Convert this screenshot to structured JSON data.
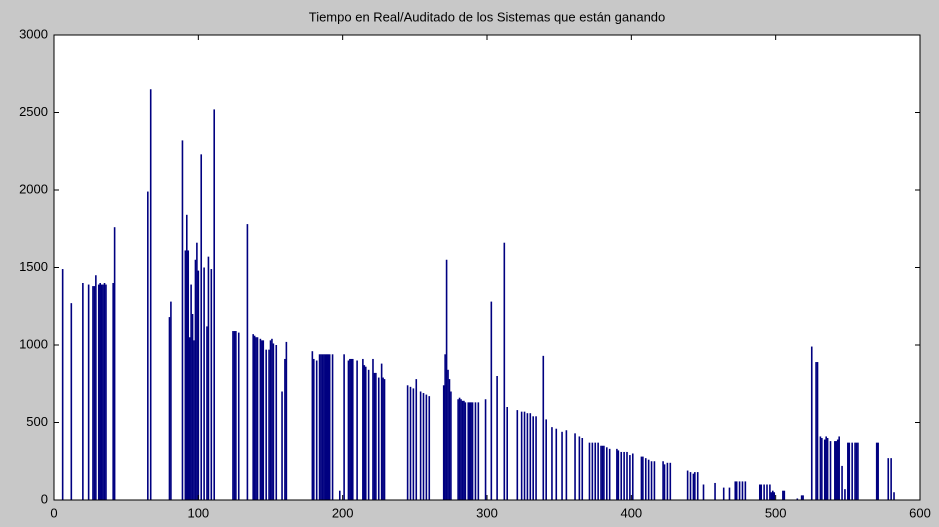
{
  "chart_data": {
    "type": "bar",
    "title": "Tiempo en Real/Auditado de los Sistemas que están ganando",
    "color": "#000080",
    "xlim": [
      0,
      600
    ],
    "xticks": [
      0,
      100,
      200,
      300,
      400,
      500,
      600
    ],
    "ylim": [
      0,
      3000
    ],
    "yticks": [
      0,
      500,
      1000,
      1500,
      2000,
      2500,
      3000
    ],
    "x": [
      6,
      12,
      20,
      24,
      27,
      28,
      29,
      31,
      32,
      33,
      34,
      35,
      36,
      41,
      42,
      65,
      67,
      80,
      81,
      89,
      91,
      92,
      93,
      94,
      95,
      96,
      97,
      98,
      99,
      100,
      102,
      104,
      106,
      107,
      109,
      111,
      124,
      125,
      126,
      128,
      134,
      138,
      139,
      140,
      141,
      143,
      144,
      145,
      147,
      149,
      150,
      151,
      152,
      154,
      158,
      160,
      161,
      179,
      180,
      182,
      184,
      185,
      186,
      187,
      188,
      189,
      190,
      191,
      193,
      198,
      201,
      204,
      205,
      206,
      207,
      210,
      214,
      215,
      216,
      218,
      221,
      222,
      223,
      225,
      227,
      228,
      229,
      245,
      247,
      249,
      251,
      254,
      256,
      258,
      260,
      270,
      271,
      272,
      273,
      274,
      275,
      280,
      281,
      282,
      283,
      284,
      285,
      287,
      288,
      289,
      290,
      292,
      294,
      299,
      303,
      307,
      312,
      314,
      321,
      324,
      326,
      328,
      330,
      332,
      334,
      339,
      341,
      345,
      348,
      352,
      355,
      361,
      364,
      366,
      371,
      373,
      375,
      377,
      379,
      380,
      381,
      383,
      385,
      390,
      391,
      393,
      395,
      397,
      399,
      401,
      407,
      408,
      410,
      412,
      414,
      416,
      422,
      423,
      425,
      427,
      439,
      441,
      443,
      444,
      446,
      450,
      458,
      464,
      468,
      472,
      473,
      475,
      477,
      479,
      489,
      490,
      492,
      494,
      496,
      497,
      498,
      499,
      505,
      506,
      515,
      518,
      519,
      525,
      528,
      529,
      531,
      532,
      534,
      535,
      536,
      538,
      541,
      542,
      543,
      544,
      546,
      548,
      550,
      551,
      553,
      555,
      556,
      557,
      570,
      571,
      578,
      580,
      582
    ],
    "values": [
      1490,
      1270,
      1400,
      1390,
      1380,
      1380,
      1450,
      1390,
      1400,
      1390,
      1390,
      1400,
      1390,
      1400,
      1760,
      1990,
      2650,
      1180,
      1280,
      2320,
      1610,
      1840,
      1610,
      1050,
      1390,
      1200,
      1030,
      1550,
      1660,
      1480,
      2230,
      1500,
      1120,
      1570,
      1490,
      2520,
      1090,
      1090,
      1090,
      1080,
      1780,
      1070,
      1060,
      1050,
      1050,
      1040,
      1030,
      1030,
      970,
      970,
      1030,
      1040,
      1010,
      1000,
      700,
      910,
      1020,
      960,
      910,
      900,
      940,
      940,
      940,
      940,
      940,
      940,
      940,
      940,
      940,
      60,
      940,
      900,
      910,
      910,
      910,
      900,
      910,
      870,
      860,
      840,
      910,
      820,
      820,
      790,
      880,
      790,
      780,
      740,
      730,
      720,
      780,
      700,
      690,
      680,
      670,
      740,
      940,
      1550,
      840,
      780,
      700,
      650,
      660,
      650,
      640,
      640,
      630,
      630,
      630,
      630,
      630,
      630,
      630,
      650,
      1280,
      800,
      1660,
      600,
      580,
      570,
      570,
      560,
      560,
      540,
      540,
      930,
      520,
      470,
      460,
      440,
      450,
      430,
      410,
      400,
      370,
      370,
      370,
      370,
      350,
      350,
      350,
      340,
      330,
      330,
      320,
      310,
      310,
      310,
      290,
      300,
      280,
      280,
      270,
      260,
      250,
      250,
      250,
      230,
      240,
      240,
      190,
      180,
      170,
      180,
      180,
      100,
      110,
      80,
      80,
      120,
      120,
      120,
      120,
      120,
      100,
      100,
      100,
      100,
      100,
      50,
      60,
      50,
      60,
      60,
      10,
      30,
      30,
      990,
      890,
      890,
      410,
      400,
      390,
      410,
      400,
      380,
      380,
      380,
      390,
      410,
      220,
      70,
      370,
      370,
      370,
      370,
      370,
      370,
      370,
      370,
      270,
      270,
      50
    ]
  }
}
